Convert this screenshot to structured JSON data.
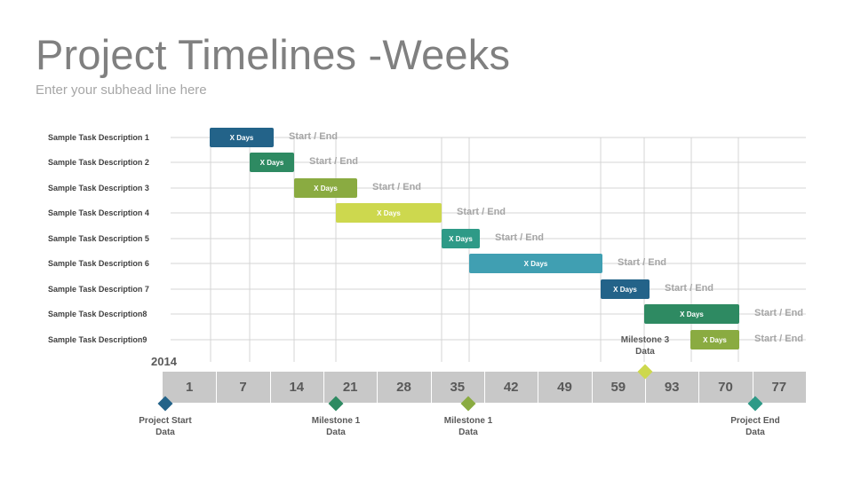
{
  "header": {
    "title": "Project Timelines -Weeks",
    "subtitle": "Enter your subhead line here"
  },
  "timeline": {
    "year": "2014",
    "weeks": [
      "1",
      "7",
      "14",
      "21",
      "28",
      "35",
      "42",
      "49",
      "59",
      "93",
      "70",
      "77"
    ]
  },
  "tasks": [
    {
      "label": "Sample Task Description 1",
      "bar_text": "X Days",
      "status_text": "Start / End",
      "color": "#236389"
    },
    {
      "label": "Sample Task Description 2",
      "bar_text": "X Days",
      "status_text": "Start / End",
      "color": "#2e8a62"
    },
    {
      "label": "Sample Task Description 3",
      "bar_text": "X Days",
      "status_text": "Start / End",
      "color": "#8aab41"
    },
    {
      "label": "Sample Task Description 4",
      "bar_text": "X Days",
      "status_text": "Start / End",
      "color": "#cdd84e"
    },
    {
      "label": "Sample Task Description 5",
      "bar_text": "X Days",
      "status_text": "Start / End",
      "color": "#2e9a87"
    },
    {
      "label": "Sample Task Description 6",
      "bar_text": "X Days",
      "status_text": "Start / End",
      "color": "#409fb2"
    },
    {
      "label": "Sample Task Description 7",
      "bar_text": "X Days",
      "status_text": "Start / End",
      "color": "#236389"
    },
    {
      "label": "Sample Task Description8",
      "bar_text": "X Days",
      "status_text": "Start / End",
      "color": "#2e8a62"
    },
    {
      "label": "Sample Task Description9",
      "bar_text": "X Days",
      "status_text": "Start / End",
      "color": "#8aab41"
    }
  ],
  "milestones": [
    {
      "label_line1": "Project Start",
      "label_line2": "Data",
      "color": "#236389"
    },
    {
      "label_line1": "Milestone 1",
      "label_line2": "Data",
      "color": "#2e8a62"
    },
    {
      "label_line1": "Milestone 1",
      "label_line2": "Data",
      "color": "#8aab41"
    },
    {
      "label_line1": "Milestone 3",
      "label_line2": "Data",
      "color": "#cdd84e"
    },
    {
      "label_line1": "Project End",
      "label_line2": "Data",
      "color": "#2e9a87"
    }
  ]
}
